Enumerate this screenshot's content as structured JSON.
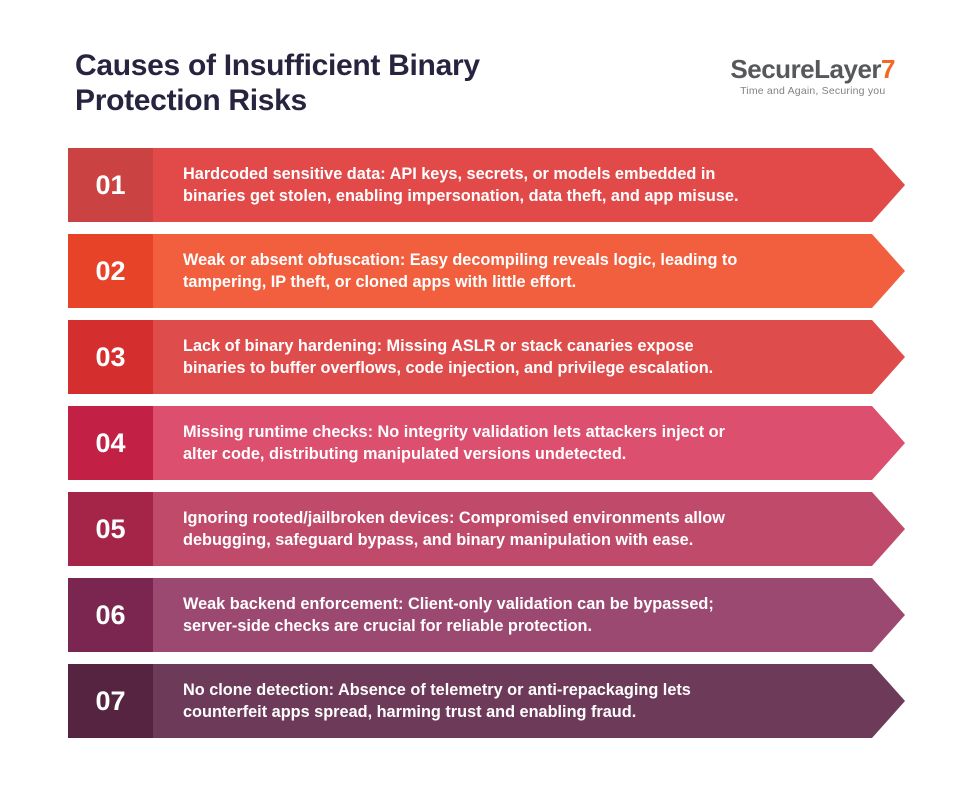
{
  "header": {
    "title": "Causes of Insufficient Binary\nProtection Risks",
    "title_color": "#27243f",
    "logo": {
      "brand": "SecureLayer",
      "brand_accent": "7",
      "brand_color": "#57585b",
      "accent_color": "#f26822",
      "tagline": "Time and Again, Securing you",
      "tagline_color": "#808285"
    }
  },
  "list": {
    "items": [
      {
        "number": "01",
        "text": "Hardcoded sensitive data: API keys, secrets, or models embedded in\nbinaries get stolen, enabling impersonation, data theft, and app misuse.",
        "body_color": "#e24a4a",
        "number_color": "#cb4242"
      },
      {
        "number": "02",
        "text": "Weak or absent obfuscation: Easy decompiling reveals logic, leading to\ntampering, IP theft, or cloned apps with little effort.",
        "body_color": "#f15f3e",
        "number_color": "#e74328"
      },
      {
        "number": "03",
        "text": "Lack of binary hardening: Missing ASLR or stack canaries expose\nbinaries to buffer overflows, code injection, and privilege escalation.",
        "body_color": "#df4c4c",
        "number_color": "#d42e2e"
      },
      {
        "number": "04",
        "text": "Missing runtime checks: No integrity validation lets attackers inject or\nalter code, distributing manipulated versions undetected.",
        "body_color": "#dc4f6e",
        "number_color": "#c22045"
      },
      {
        "number": "05",
        "text": "Ignoring rooted/jailbroken devices: Compromised environments allow\ndebugging, safeguard bypass, and binary manipulation with ease.",
        "body_color": "#bf4a6a",
        "number_color": "#a52549"
      },
      {
        "number": "06",
        "text": "Weak backend enforcement: Client-only validation can be bypassed;\nserver-side checks are crucial for reliable protection.",
        "body_color": "#9c4971",
        "number_color": "#7b2650"
      },
      {
        "number": "07",
        "text": "No clone detection: Absence of telemetry or anti-repackaging lets\ncounterfeit apps spread, harming trust and enabling fraud.",
        "body_color": "#6d3a59",
        "number_color": "#562340"
      }
    ]
  }
}
